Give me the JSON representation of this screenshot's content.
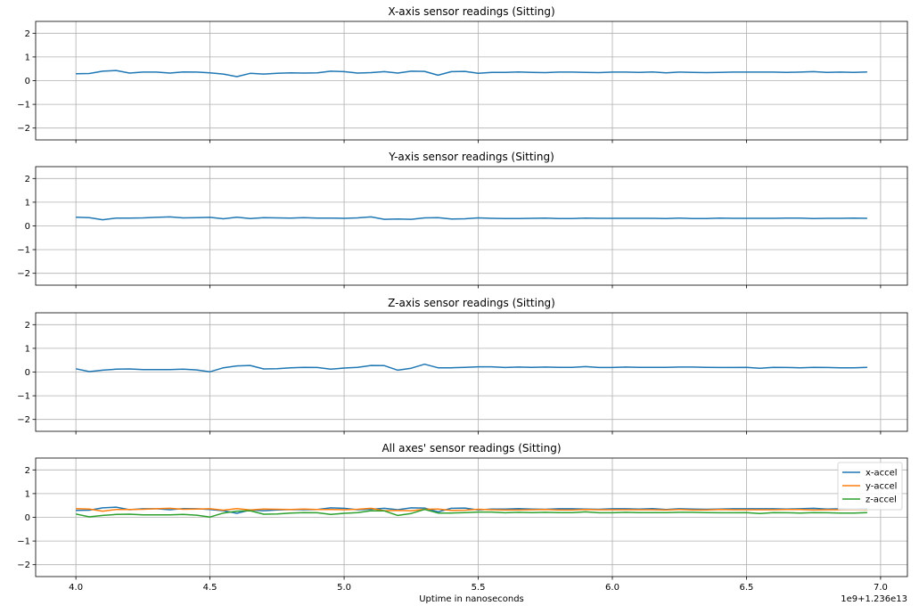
{
  "chart_data": [
    {
      "type": "line",
      "title": "X-axis sensor readings (Sitting)",
      "xlim": [
        3.85,
        7.1
      ],
      "ylim": [
        -2.5,
        2.5
      ],
      "x_ticks": [
        4.0,
        4.5,
        5.0,
        5.5,
        6.0,
        6.5,
        7.0
      ],
      "x_tick_labels_visible": false,
      "y_ticks": [
        -2,
        -1,
        0,
        1,
        2
      ],
      "y_tick_labels": [
        "−2",
        "−1",
        "0",
        "1",
        "2"
      ],
      "grid": true,
      "series": [
        {
          "color": "#1f77b4",
          "x": [
            4.0,
            4.05,
            4.1,
            4.15,
            4.2,
            4.25,
            4.3,
            4.35,
            4.4,
            4.45,
            4.5,
            4.55,
            4.6,
            4.65,
            4.7,
            4.75,
            4.8,
            4.85,
            4.9,
            4.95,
            5.0,
            5.05,
            5.1,
            5.15,
            5.2,
            5.25,
            5.3,
            5.35,
            5.4,
            5.45,
            5.5,
            5.55,
            5.6,
            5.65,
            5.7,
            5.75,
            5.8,
            5.85,
            5.9,
            5.95,
            6.0,
            6.05,
            6.1,
            6.15,
            6.2,
            6.25,
            6.3,
            6.35,
            6.4,
            6.45,
            6.5,
            6.55,
            6.6,
            6.65,
            6.7,
            6.75,
            6.8,
            6.85,
            6.9,
            6.95
          ],
          "values": [
            0.29,
            0.3,
            0.4,
            0.43,
            0.32,
            0.36,
            0.36,
            0.32,
            0.37,
            0.36,
            0.33,
            0.28,
            0.17,
            0.31,
            0.28,
            0.31,
            0.33,
            0.32,
            0.33,
            0.4,
            0.38,
            0.32,
            0.34,
            0.38,
            0.32,
            0.4,
            0.39,
            0.23,
            0.38,
            0.39,
            0.31,
            0.35,
            0.35,
            0.37,
            0.35,
            0.34,
            0.36,
            0.36,
            0.35,
            0.34,
            0.36,
            0.36,
            0.35,
            0.37,
            0.33,
            0.36,
            0.35,
            0.34,
            0.35,
            0.36,
            0.36,
            0.36,
            0.36,
            0.35,
            0.36,
            0.38,
            0.35,
            0.36,
            0.35,
            0.37
          ]
        }
      ]
    },
    {
      "type": "line",
      "title": "Y-axis sensor readings (Sitting)",
      "xlim": [
        3.85,
        7.1
      ],
      "ylim": [
        -2.5,
        2.5
      ],
      "x_ticks": [
        4.0,
        4.5,
        5.0,
        5.5,
        6.0,
        6.5,
        7.0
      ],
      "x_tick_labels_visible": false,
      "y_ticks": [
        -2,
        -1,
        0,
        1,
        2
      ],
      "y_tick_labels": [
        "−2",
        "−1",
        "0",
        "1",
        "2"
      ],
      "grid": true,
      "series": [
        {
          "color": "#1f77b4",
          "x": [
            4.0,
            4.05,
            4.1,
            4.15,
            4.2,
            4.25,
            4.3,
            4.35,
            4.4,
            4.45,
            4.5,
            4.55,
            4.6,
            4.65,
            4.7,
            4.75,
            4.8,
            4.85,
            4.9,
            4.95,
            5.0,
            5.05,
            5.1,
            5.15,
            5.2,
            5.25,
            5.3,
            5.35,
            5.4,
            5.45,
            5.5,
            5.55,
            5.6,
            5.65,
            5.7,
            5.75,
            5.8,
            5.85,
            5.9,
            5.95,
            6.0,
            6.05,
            6.1,
            6.15,
            6.2,
            6.25,
            6.3,
            6.35,
            6.4,
            6.45,
            6.5,
            6.55,
            6.6,
            6.65,
            6.7,
            6.75,
            6.8,
            6.85,
            6.9,
            6.95
          ],
          "values": [
            0.37,
            0.35,
            0.26,
            0.33,
            0.33,
            0.34,
            0.36,
            0.38,
            0.34,
            0.35,
            0.36,
            0.3,
            0.37,
            0.31,
            0.35,
            0.34,
            0.33,
            0.35,
            0.33,
            0.33,
            0.32,
            0.34,
            0.38,
            0.28,
            0.29,
            0.28,
            0.34,
            0.35,
            0.29,
            0.3,
            0.34,
            0.32,
            0.31,
            0.31,
            0.32,
            0.33,
            0.31,
            0.31,
            0.33,
            0.32,
            0.32,
            0.32,
            0.32,
            0.32,
            0.31,
            0.33,
            0.31,
            0.31,
            0.33,
            0.32,
            0.32,
            0.32,
            0.32,
            0.33,
            0.33,
            0.31,
            0.32,
            0.32,
            0.33,
            0.32
          ]
        }
      ]
    },
    {
      "type": "line",
      "title": "Z-axis sensor readings (Sitting)",
      "xlim": [
        3.85,
        7.1
      ],
      "ylim": [
        -2.5,
        2.5
      ],
      "x_ticks": [
        4.0,
        4.5,
        5.0,
        5.5,
        6.0,
        6.5,
        7.0
      ],
      "x_tick_labels_visible": false,
      "y_ticks": [
        -2,
        -1,
        0,
        1,
        2
      ],
      "y_tick_labels": [
        "−2",
        "−1",
        "0",
        "1",
        "2"
      ],
      "grid": true,
      "series": [
        {
          "color": "#1f77b4",
          "x": [
            4.0,
            4.05,
            4.1,
            4.15,
            4.2,
            4.25,
            4.3,
            4.35,
            4.4,
            4.45,
            4.5,
            4.55,
            4.6,
            4.65,
            4.7,
            4.75,
            4.8,
            4.85,
            4.9,
            4.95,
            5.0,
            5.05,
            5.1,
            5.15,
            5.2,
            5.25,
            5.3,
            5.35,
            5.4,
            5.45,
            5.5,
            5.55,
            5.6,
            5.65,
            5.7,
            5.75,
            5.8,
            5.85,
            5.9,
            5.95,
            6.0,
            6.05,
            6.1,
            6.15,
            6.2,
            6.25,
            6.3,
            6.35,
            6.4,
            6.45,
            6.5,
            6.55,
            6.6,
            6.65,
            6.7,
            6.75,
            6.8,
            6.85,
            6.9,
            6.95
          ],
          "values": [
            0.14,
            0.02,
            0.08,
            0.12,
            0.13,
            0.1,
            0.1,
            0.1,
            0.12,
            0.09,
            0.01,
            0.18,
            0.26,
            0.28,
            0.13,
            0.14,
            0.18,
            0.2,
            0.19,
            0.12,
            0.17,
            0.2,
            0.28,
            0.27,
            0.08,
            0.16,
            0.33,
            0.18,
            0.18,
            0.2,
            0.22,
            0.22,
            0.19,
            0.21,
            0.2,
            0.21,
            0.2,
            0.2,
            0.23,
            0.19,
            0.19,
            0.21,
            0.2,
            0.2,
            0.2,
            0.21,
            0.21,
            0.2,
            0.19,
            0.19,
            0.2,
            0.16,
            0.2,
            0.19,
            0.18,
            0.2,
            0.19,
            0.18,
            0.18,
            0.2
          ]
        }
      ]
    },
    {
      "type": "line",
      "title": "All axes' sensor readings (Sitting)",
      "xlabel": "Uptime in nanoseconds",
      "x_offset_label": "1e9+1.236e13",
      "xlim": [
        3.85,
        7.1
      ],
      "ylim": [
        -2.5,
        2.5
      ],
      "x_ticks": [
        4.0,
        4.5,
        5.0,
        5.5,
        6.0,
        6.5,
        7.0
      ],
      "x_tick_labels": [
        "4.0",
        "4.5",
        "5.0",
        "5.5",
        "6.0",
        "6.5",
        "7.0"
      ],
      "x_tick_labels_visible": true,
      "y_ticks": [
        -2,
        -1,
        0,
        1,
        2
      ],
      "y_tick_labels": [
        "−2",
        "−1",
        "0",
        "1",
        "2"
      ],
      "grid": true,
      "legend_position": "upper right",
      "series": [
        {
          "name": "x-accel",
          "color": "#1f77b4",
          "x": [
            4.0,
            4.05,
            4.1,
            4.15,
            4.2,
            4.25,
            4.3,
            4.35,
            4.4,
            4.45,
            4.5,
            4.55,
            4.6,
            4.65,
            4.7,
            4.75,
            4.8,
            4.85,
            4.9,
            4.95,
            5.0,
            5.05,
            5.1,
            5.15,
            5.2,
            5.25,
            5.3,
            5.35,
            5.4,
            5.45,
            5.5,
            5.55,
            5.6,
            5.65,
            5.7,
            5.75,
            5.8,
            5.85,
            5.9,
            5.95,
            6.0,
            6.05,
            6.1,
            6.15,
            6.2,
            6.25,
            6.3,
            6.35,
            6.4,
            6.45,
            6.5,
            6.55,
            6.6,
            6.65,
            6.7,
            6.75,
            6.8,
            6.85,
            6.9,
            6.95
          ],
          "values": [
            0.29,
            0.3,
            0.4,
            0.43,
            0.32,
            0.36,
            0.36,
            0.32,
            0.37,
            0.36,
            0.33,
            0.28,
            0.17,
            0.31,
            0.28,
            0.31,
            0.33,
            0.32,
            0.33,
            0.4,
            0.38,
            0.32,
            0.34,
            0.38,
            0.32,
            0.4,
            0.39,
            0.23,
            0.38,
            0.39,
            0.31,
            0.35,
            0.35,
            0.37,
            0.35,
            0.34,
            0.36,
            0.36,
            0.35,
            0.34,
            0.36,
            0.36,
            0.35,
            0.37,
            0.33,
            0.36,
            0.35,
            0.34,
            0.35,
            0.36,
            0.36,
            0.36,
            0.36,
            0.35,
            0.36,
            0.38,
            0.35,
            0.36,
            0.35,
            0.37
          ]
        },
        {
          "name": "y-accel",
          "color": "#ff7f0e",
          "x": [
            4.0,
            4.05,
            4.1,
            4.15,
            4.2,
            4.25,
            4.3,
            4.35,
            4.4,
            4.45,
            4.5,
            4.55,
            4.6,
            4.65,
            4.7,
            4.75,
            4.8,
            4.85,
            4.9,
            4.95,
            5.0,
            5.05,
            5.1,
            5.15,
            5.2,
            5.25,
            5.3,
            5.35,
            5.4,
            5.45,
            5.5,
            5.55,
            5.6,
            5.65,
            5.7,
            5.75,
            5.8,
            5.85,
            5.9,
            5.95,
            6.0,
            6.05,
            6.1,
            6.15,
            6.2,
            6.25,
            6.3,
            6.35,
            6.4,
            6.45,
            6.5,
            6.55,
            6.6,
            6.65,
            6.7,
            6.75,
            6.8,
            6.85,
            6.9,
            6.95
          ],
          "values": [
            0.37,
            0.35,
            0.26,
            0.33,
            0.33,
            0.34,
            0.36,
            0.38,
            0.34,
            0.35,
            0.36,
            0.3,
            0.37,
            0.31,
            0.35,
            0.34,
            0.33,
            0.35,
            0.33,
            0.33,
            0.32,
            0.34,
            0.38,
            0.28,
            0.29,
            0.28,
            0.34,
            0.35,
            0.29,
            0.3,
            0.34,
            0.32,
            0.31,
            0.31,
            0.32,
            0.33,
            0.31,
            0.31,
            0.33,
            0.32,
            0.32,
            0.32,
            0.32,
            0.32,
            0.31,
            0.33,
            0.31,
            0.31,
            0.33,
            0.32,
            0.32,
            0.32,
            0.32,
            0.33,
            0.33,
            0.31,
            0.32,
            0.32,
            0.33,
            0.32
          ]
        },
        {
          "name": "z-accel",
          "color": "#2ca02c",
          "x": [
            4.0,
            4.05,
            4.1,
            4.15,
            4.2,
            4.25,
            4.3,
            4.35,
            4.4,
            4.45,
            4.5,
            4.55,
            4.6,
            4.65,
            4.7,
            4.75,
            4.8,
            4.85,
            4.9,
            4.95,
            5.0,
            5.05,
            5.1,
            5.15,
            5.2,
            5.25,
            5.3,
            5.35,
            5.4,
            5.45,
            5.5,
            5.55,
            5.6,
            5.65,
            5.7,
            5.75,
            5.8,
            5.85,
            5.9,
            5.95,
            6.0,
            6.05,
            6.1,
            6.15,
            6.2,
            6.25,
            6.3,
            6.35,
            6.4,
            6.45,
            6.5,
            6.55,
            6.6,
            6.65,
            6.7,
            6.75,
            6.8,
            6.85,
            6.9,
            6.95
          ],
          "values": [
            0.14,
            0.02,
            0.08,
            0.12,
            0.13,
            0.1,
            0.1,
            0.1,
            0.12,
            0.09,
            0.01,
            0.18,
            0.26,
            0.28,
            0.13,
            0.14,
            0.18,
            0.2,
            0.19,
            0.12,
            0.17,
            0.2,
            0.28,
            0.27,
            0.08,
            0.16,
            0.33,
            0.18,
            0.18,
            0.2,
            0.22,
            0.22,
            0.19,
            0.21,
            0.2,
            0.21,
            0.2,
            0.2,
            0.23,
            0.19,
            0.19,
            0.21,
            0.2,
            0.2,
            0.2,
            0.21,
            0.21,
            0.2,
            0.19,
            0.19,
            0.2,
            0.16,
            0.2,
            0.19,
            0.18,
            0.2,
            0.19,
            0.18,
            0.18,
            0.2
          ]
        }
      ]
    }
  ]
}
